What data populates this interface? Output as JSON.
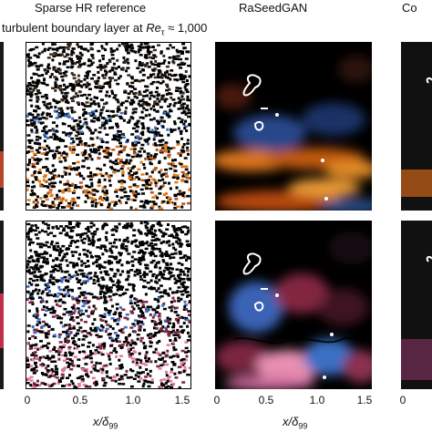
{
  "columns": [
    {
      "id": "left-partial",
      "title": ""
    },
    {
      "id": "sparse-hr",
      "title": "Sparse HR reference"
    },
    {
      "id": "raseedgan",
      "title": "RaSeedGAN"
    },
    {
      "id": "right-partial",
      "title": "Co"
    }
  ],
  "subtitle": {
    "text": "turbulent boundary layer at ",
    "re_symbol": "Re",
    "re_sub": "τ",
    "approx": " ≈ 1,000"
  },
  "xaxis": {
    "label_main": "x/δ",
    "label_sub": "99",
    "ticks_sparse": [
      "0",
      "0.5",
      "1.0",
      "1.5"
    ],
    "ticks_raseedgan": [
      "0",
      "0.5",
      "1.0",
      "1.5"
    ]
  },
  "colors": {
    "warm": "#e07a18",
    "cool": "#3a6fc4",
    "pink": "#e07aa0",
    "background": "#000000",
    "contour": "#ffffff"
  }
}
